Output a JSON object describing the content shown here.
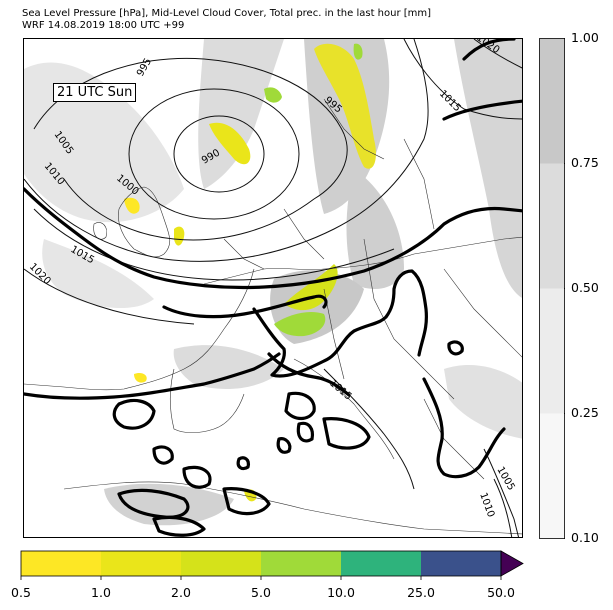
{
  "title": {
    "line1": "Sea Level Pressure [hPa], Mid-Level Cloud Cover, Total prec. in the last hour [mm]",
    "line2": "WRF 14.08.2019 18:00 UTC +99"
  },
  "map": {
    "time_label": "21 UTC Sun",
    "isobar_labels": [
      "995",
      "995",
      "990",
      "1000",
      "1005",
      "1010",
      "1015",
      "1020",
      "1020",
      "1015",
      "1015",
      "1005",
      "1010"
    ]
  },
  "cloud_colorbar": {
    "ticks": [
      "0.10",
      "0.25",
      "0.50",
      "0.75",
      "1.00"
    ],
    "colors": [
      "#f7f7f7",
      "#ececec",
      "#dcdcdc",
      "#c8c8c8"
    ]
  },
  "precip_colorbar": {
    "ticks": [
      "0.5",
      "1.0",
      "2.0",
      "5.0",
      "10.0",
      "25.0",
      "50.0"
    ],
    "colors": [
      "#fde725",
      "#eae51a",
      "#d5e21a",
      "#a0da39",
      "#2eb37c",
      "#3a518b",
      "#440154"
    ]
  }
}
